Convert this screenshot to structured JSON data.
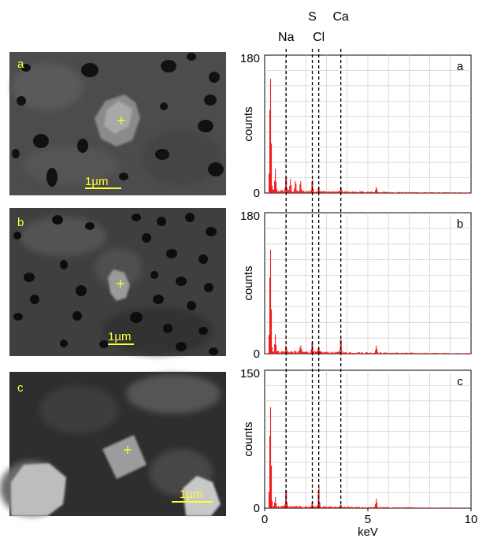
{
  "colors": {
    "spectrum": "#ee1111",
    "grid": "#cccccc",
    "sem_text": "#ffff33",
    "sem_background": "#4a4a4a"
  },
  "sem_images": [
    {
      "panel_label": "a",
      "scale_bar_text": "1µm"
    },
    {
      "panel_label": "b",
      "scale_bar_text": "1µm"
    },
    {
      "panel_label": "c",
      "scale_bar_text": "1µm"
    }
  ],
  "element_lines": [
    {
      "element": "Na",
      "kev": 1.04
    },
    {
      "element": "S",
      "kev": 2.31
    },
    {
      "element": "Cl",
      "kev": 2.62
    },
    {
      "element": "Ca",
      "kev": 3.69
    }
  ],
  "chart_data": [
    {
      "type": "bar",
      "panel_label": "a",
      "xlabel": "",
      "ylabel": "counts",
      "xlim": [
        0,
        10
      ],
      "ylim": [
        0,
        180
      ],
      "ytick_labels": [
        "0",
        "180"
      ],
      "xtick_labels": [],
      "peaks": [
        {
          "kev": 0.28,
          "counts": 150
        },
        {
          "kev": 0.52,
          "counts": 28
        },
        {
          "kev": 1.04,
          "counts": 22
        },
        {
          "kev": 1.25,
          "counts": 16
        },
        {
          "kev": 1.49,
          "counts": 14
        },
        {
          "kev": 1.74,
          "counts": 13
        },
        {
          "kev": 2.31,
          "counts": 17
        },
        {
          "kev": 2.62,
          "counts": 8
        },
        {
          "kev": 3.69,
          "counts": 6
        },
        {
          "kev": 5.41,
          "counts": 7
        }
      ],
      "noise_level": 3
    },
    {
      "type": "bar",
      "panel_label": "b",
      "xlabel": "",
      "ylabel": "counts",
      "xlim": [
        0,
        10
      ],
      "ylim": [
        0,
        180
      ],
      "ytick_labels": [
        "0",
        "180"
      ],
      "xtick_labels": [],
      "peaks": [
        {
          "kev": 0.28,
          "counts": 135
        },
        {
          "kev": 0.52,
          "counts": 22
        },
        {
          "kev": 1.04,
          "counts": 8
        },
        {
          "kev": 1.74,
          "counts": 9
        },
        {
          "kev": 2.31,
          "counts": 16
        },
        {
          "kev": 2.62,
          "counts": 6
        },
        {
          "kev": 3.69,
          "counts": 20
        },
        {
          "kev": 5.41,
          "counts": 10
        }
      ],
      "noise_level": 3
    },
    {
      "type": "bar",
      "panel_label": "c",
      "xlabel": "keV",
      "ylabel": "counts",
      "xlim": [
        0,
        10
      ],
      "ylim": [
        0,
        150
      ],
      "ytick_labels": [
        "0",
        "150"
      ],
      "xtick_labels": [
        "0",
        "5",
        "10"
      ],
      "peaks": [
        {
          "kev": 0.28,
          "counts": 110
        },
        {
          "kev": 0.52,
          "counts": 10
        },
        {
          "kev": 1.04,
          "counts": 22
        },
        {
          "kev": 2.31,
          "counts": 6
        },
        {
          "kev": 2.62,
          "counts": 24
        },
        {
          "kev": 3.69,
          "counts": 3
        },
        {
          "kev": 5.41,
          "counts": 10
        }
      ],
      "noise_level": 2
    }
  ]
}
